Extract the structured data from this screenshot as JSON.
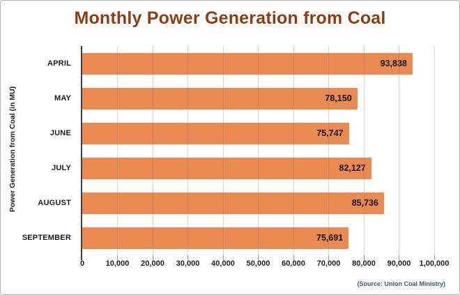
{
  "title": "Monthly Power Generation from Coal",
  "source_note": "(Source: Union Coal Ministry)",
  "colors": {
    "bar": "#EB8B52",
    "title": "#8E3C10",
    "axis_line": "#3F3F3F",
    "gridline_overlay": "rgba(120,120,120,0.32)",
    "text": "#1A1A1A",
    "source_text": "#44546A",
    "frame_border": "#B3B3B3",
    "background": "#FFFFFF"
  },
  "chart_data": {
    "type": "bar",
    "orientation": "horizontal",
    "title": "Monthly Power Generation from Coal",
    "xlabel": "",
    "ylabel": "Power Generation from Coal (in MU)",
    "categories": [
      "APRIL",
      "MAY",
      "JUNE",
      "JULY",
      "AUGUST",
      "SEPTEMBER"
    ],
    "values": [
      93838,
      78150,
      75747,
      82127,
      85736,
      75691
    ],
    "value_labels": [
      "93,838",
      "78,150",
      "75,747",
      "82,127",
      "85,736",
      "75,691"
    ],
    "xlim": [
      0,
      100000
    ],
    "x_ticks": [
      0,
      10000,
      20000,
      30000,
      40000,
      50000,
      60000,
      70000,
      80000,
      90000,
      100000
    ],
    "x_tick_labels": [
      "0",
      "10,000",
      "20,000",
      "30,000",
      "40,000",
      "50,000",
      "60,000",
      "70,000",
      "80,000",
      "90,000",
      "1,00,000"
    ],
    "grid": true,
    "gridline_interval": 10000,
    "data_label_position": "inside-end",
    "legend": "none",
    "annotations": [
      "(Source: Union Coal Ministry)"
    ]
  }
}
